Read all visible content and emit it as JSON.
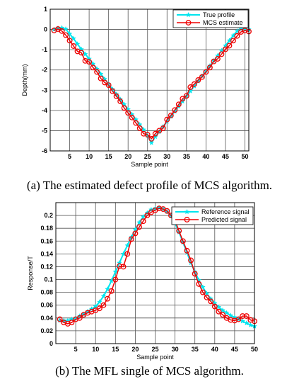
{
  "chart_data": [
    {
      "type": "line",
      "xlabel": "Sample point",
      "ylabel": "Depth(mm)",
      "xlim": [
        0,
        51
      ],
      "ylim": [
        -6,
        1
      ],
      "xticks": [
        5,
        10,
        15,
        20,
        25,
        30,
        35,
        40,
        45,
        50
      ],
      "yticks": [
        1,
        0,
        -1,
        -2,
        -3,
        -4,
        -5,
        -6
      ],
      "grid": true,
      "legend": "top-right",
      "x": [
        1,
        2,
        3,
        4,
        5,
        6,
        7,
        8,
        9,
        10,
        11,
        12,
        13,
        14,
        15,
        16,
        17,
        18,
        19,
        20,
        21,
        22,
        23,
        24,
        25,
        26,
        27,
        28,
        29,
        30,
        31,
        32,
        33,
        34,
        35,
        36,
        37,
        38,
        39,
        40,
        41,
        42,
        43,
        44,
        45,
        46,
        47,
        48,
        49,
        50,
        51
      ],
      "series": [
        {
          "name": "True profile",
          "color": "#00e5ee",
          "marker": "star",
          "values": [
            0,
            0.05,
            0.08,
            0.02,
            -0.22,
            -0.45,
            -0.72,
            -0.98,
            -1.22,
            -1.45,
            -1.7,
            -1.95,
            -2.2,
            -2.45,
            -2.7,
            -2.95,
            -3.2,
            -3.45,
            -3.7,
            -3.95,
            -4.2,
            -4.45,
            -4.7,
            -4.95,
            -5.25,
            -5.6,
            -5.3,
            -5.05,
            -4.8,
            -4.55,
            -4.3,
            -4.05,
            -3.8,
            -3.55,
            -3.3,
            -3.05,
            -2.8,
            -2.55,
            -2.3,
            -2.05,
            -1.8,
            -1.55,
            -1.3,
            -1.05,
            -0.8,
            -0.55,
            -0.3,
            -0.08,
            0.02,
            0.02,
            0
          ]
        },
        {
          "name": "MCS estimate",
          "color": "#ee0000",
          "marker": "circle",
          "values": [
            -0.05,
            0.02,
            -0.08,
            -0.28,
            -0.55,
            -0.82,
            -1.08,
            -1.15,
            -1.55,
            -1.6,
            -1.88,
            -2.1,
            -2.42,
            -2.62,
            -2.75,
            -3.05,
            -3.3,
            -3.55,
            -3.88,
            -4.12,
            -4.35,
            -4.62,
            -4.88,
            -5.15,
            -5.2,
            -5.4,
            -5.15,
            -5.0,
            -4.88,
            -4.45,
            -4.25,
            -3.98,
            -3.7,
            -3.42,
            -3.28,
            -2.85,
            -2.7,
            -2.5,
            -2.35,
            -2.1,
            -1.88,
            -1.58,
            -1.45,
            -1.22,
            -0.98,
            -0.8,
            -0.55,
            -0.32,
            -0.12,
            -0.05,
            -0.1
          ]
        }
      ]
    },
    {
      "type": "line",
      "xlabel": "Sample point",
      "ylabel": "Response/T",
      "xlim": [
        0,
        50
      ],
      "ylim": [
        0,
        0.22
      ],
      "xticks": [
        5,
        10,
        15,
        20,
        25,
        30,
        35,
        40,
        45,
        50
      ],
      "yticks": [
        0,
        0.02,
        0.04,
        0.06,
        0.08,
        0.1,
        0.12,
        0.14,
        0.16,
        0.18,
        0.2
      ],
      "grid": true,
      "legend": "top-right",
      "x": [
        1,
        2,
        3,
        4,
        5,
        6,
        7,
        8,
        9,
        10,
        11,
        12,
        13,
        14,
        15,
        16,
        17,
        18,
        19,
        20,
        21,
        22,
        23,
        24,
        25,
        26,
        27,
        28,
        29,
        30,
        31,
        32,
        33,
        34,
        35,
        36,
        37,
        38,
        39,
        40,
        41,
        42,
        43,
        44,
        45,
        46,
        47,
        48,
        49,
        50
      ],
      "series": [
        {
          "name": "Reference signal",
          "color": "#00e5ee",
          "marker": "star",
          "values": [
            0.036,
            0.036,
            0.036,
            0.038,
            0.04,
            0.043,
            0.046,
            0.05,
            0.054,
            0.058,
            0.065,
            0.074,
            0.085,
            0.098,
            0.112,
            0.126,
            0.14,
            0.153,
            0.166,
            0.178,
            0.189,
            0.198,
            0.204,
            0.209,
            0.211,
            0.212,
            0.21,
            0.206,
            0.199,
            0.188,
            0.174,
            0.158,
            0.142,
            0.126,
            0.112,
            0.099,
            0.088,
            0.078,
            0.07,
            0.063,
            0.057,
            0.052,
            0.048,
            0.044,
            0.041,
            0.038,
            0.035,
            0.032,
            0.029,
            0.027
          ]
        },
        {
          "name": "Predicted signal",
          "color": "#ee0000",
          "marker": "circle",
          "values": [
            0.038,
            0.033,
            0.031,
            0.033,
            0.038,
            0.04,
            0.045,
            0.048,
            0.05,
            0.052,
            0.055,
            0.06,
            0.07,
            0.082,
            0.1,
            0.121,
            0.12,
            0.14,
            0.163,
            0.172,
            0.182,
            0.191,
            0.2,
            0.205,
            0.208,
            0.211,
            0.21,
            0.207,
            0.2,
            0.192,
            0.176,
            0.16,
            0.145,
            0.13,
            0.109,
            0.093,
            0.08,
            0.072,
            0.066,
            0.058,
            0.05,
            0.045,
            0.04,
            0.037,
            0.036,
            0.038,
            0.043,
            0.043,
            0.037,
            0.035
          ]
        }
      ]
    }
  ],
  "captions": {
    "a": "(a) The estimated defect profile of MCS algorithm.",
    "b": "(b) The MFL single of MCS algorithm."
  }
}
